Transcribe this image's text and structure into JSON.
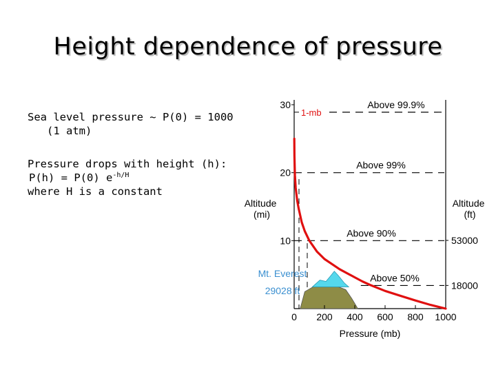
{
  "slide": {
    "title": "Height dependence of pressure",
    "bullet1_line1": "Sea level pressure ~ P(0) = 1000",
    "bullet1_line2": "(1 atm)",
    "bullet2_line1": "Pressure drops with height (h):",
    "bullet2_formula_base": "P(h) = P(0) e",
    "bullet2_formula_exponent": "-h/H",
    "bullet2_line3": "where H is a constant"
  },
  "chart_data": {
    "type": "line",
    "xlabel": "Pressure (mb)",
    "ylabel_left": "Altitude\n(mi)",
    "ylabel_right": "Altitude\n(ft)",
    "xlim": [
      0,
      1000
    ],
    "ylim": [
      0,
      30
    ],
    "x_ticks": [
      0,
      200,
      400,
      600,
      800,
      1000
    ],
    "x_tick_labels": [
      "0",
      "200",
      "400",
      "600",
      "800",
      "1000"
    ],
    "y_ticks_left": [
      10,
      20,
      30
    ],
    "y_tick_labels_left": [
      "10",
      "20",
      "30"
    ],
    "y_ticks_right_ft": [
      18000,
      53000
    ],
    "y_tick_labels_right": [
      "18000",
      "53000"
    ],
    "series": [
      {
        "color": "#e01010",
        "x": [
          1000,
          900,
          800,
          700,
          600,
          500,
          450,
          400,
          300,
          200,
          150,
          100,
          70,
          50,
          30,
          20,
          10,
          5,
          2,
          1
        ],
        "y": [
          0.0,
          0.55,
          1.2,
          1.9,
          2.6,
          3.5,
          4.0,
          4.6,
          5.8,
          7.3,
          8.4,
          10.0,
          11.4,
          12.7,
          14.7,
          15.9,
          17.8,
          19.6,
          22.5,
          25.0
        ]
      }
    ],
    "reference_lines": [
      {
        "label": "Above 99.9%",
        "y": 28.9,
        "marker": "1-mb"
      },
      {
        "label": "Above 99%",
        "y": 20.0
      },
      {
        "label": "Above 90%",
        "y": 10.0
      },
      {
        "label": "Above 50%",
        "y": 3.4
      }
    ],
    "annotation": {
      "text_line1": "Mt. Everest",
      "text_line2": "29028 ft",
      "height_mi": 5.5
    },
    "colors": {
      "curve": "#e01010",
      "axis": "#000000",
      "everest_text": "#3a8fd0",
      "snow": "#55d8ec",
      "mountain": "#8e8c46"
    }
  }
}
